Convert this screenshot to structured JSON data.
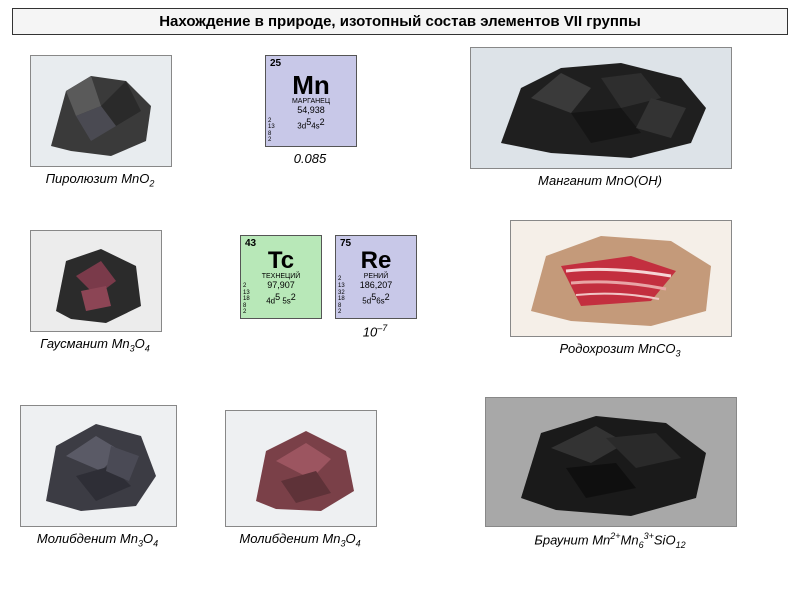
{
  "title": "Нахождение в природе, изотопный состав элементов VII группы",
  "minerals": {
    "pyrolusite": {
      "label_html": "Пиролюзит MnO<span class='sub'>2</span>"
    },
    "manganite": {
      "label_html": "Манганит MnO(OH)"
    },
    "hausmannite": {
      "label_html": "Гаусманит Mn<span class='sub'>3</span>O<span class='sub'>4</span>"
    },
    "rhodochrosite": {
      "label_html": "Родохрозит MnCO<span class='sub'>3</span>"
    },
    "molybdenite1": {
      "label_html": "Молибденит Mn<span class='sub'>3</span>O<span class='sub'>4</span>"
    },
    "molybdenite2": {
      "label_html": "Молибденит Mn<span class='sub'>3</span>O<span class='sub'>4</span>"
    },
    "braunite": {
      "label_html": "Браунит Mn<span class='sup'>2+</span>Mn<span class='sub'>6</span><span class='sup'>3+</span>SiO<span class='sub'>12</span>"
    }
  },
  "elements": {
    "mn": {
      "num": "25",
      "sym": "Mn",
      "name": "МАРГАНЕЦ",
      "mass": "54,938",
      "conf_html": "3d<span class='sup'>5</span>4s<span class='sup'>2</span>",
      "left": "2\n13\n8\n2",
      "bg": "#c8c8e8",
      "below": "0.085"
    },
    "tc": {
      "num": "43",
      "sym": "Tc",
      "name": "ТЕХНЕЦИЙ",
      "mass": "97,907",
      "conf_html": "4d<span class='sup'>5</span> 5s<span class='sup'>2</span>",
      "left": "2\n13\n18\n8\n2",
      "bg": "#b8e8b8",
      "below": ""
    },
    "re": {
      "num": "75",
      "sym": "Re",
      "name": "РЕНИЙ",
      "mass": "186,207",
      "conf_html": "5d<span class='sup'>5</span>6s<span class='sup'>2</span>",
      "left": "2\n13\n32\n18\n8\n2",
      "bg": "#c8c8e8",
      "below_html": "10<span class='sup'>–7</span>"
    }
  },
  "layout": {
    "title_fontsize": 15,
    "caption_fontsize": 13
  },
  "colors": {
    "page_bg": "#ffffff",
    "title_bg": "#f5f5f5",
    "border": "#333333"
  }
}
